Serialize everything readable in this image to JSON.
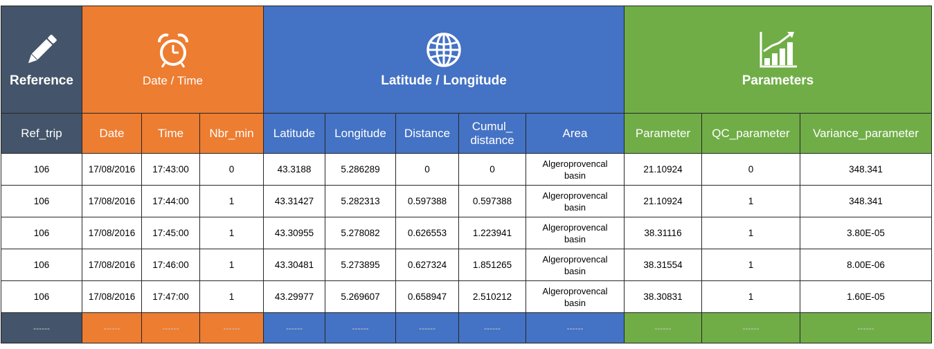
{
  "groups": [
    {
      "id": "reference",
      "title": "Reference",
      "icon": "pencil-icon",
      "color": "#44546a"
    },
    {
      "id": "datetime",
      "title": "Date / Time",
      "icon": "alarm-clock-icon",
      "color": "#ed7d31"
    },
    {
      "id": "latlon",
      "title": "Latitude / Longitude",
      "icon": "globe-icon",
      "color": "#4472c4"
    },
    {
      "id": "parameters",
      "title": "Parameters",
      "icon": "bar-chart-growth-icon",
      "color": "#70ad47"
    }
  ],
  "columns": [
    "Ref_trip",
    "Date",
    "Time",
    "Nbr_min",
    "Latitude",
    "Longitude",
    "Distance",
    "Cumul_\ndistance",
    "Area",
    "Parameter",
    "QC_parameter",
    "Variance_parameter"
  ],
  "rows": [
    [
      "106",
      "17/08/2016",
      "17:43:00",
      "0",
      "43.3188",
      "5.286289",
      "0",
      "0",
      "Algeroprovencal basin",
      "21.10924",
      "0",
      "348.341"
    ],
    [
      "106",
      "17/08/2016",
      "17:44:00",
      "1",
      "43.31427",
      "5.282313",
      "0.597388",
      "0.597388",
      "Algeroprovencal basin",
      "21.10924",
      "1",
      "348.341"
    ],
    [
      "106",
      "17/08/2016",
      "17:45:00",
      "1",
      "43.30955",
      "5.278082",
      "0.626553",
      "1.223941",
      "Algeroprovencal basin",
      "38.31116",
      "1",
      "3.80E-05"
    ],
    [
      "106",
      "17/08/2016",
      "17:46:00",
      "1",
      "43.30481",
      "5.273895",
      "0.627324",
      "1.851265",
      "Algeroprovencal basin",
      "38.31554",
      "1",
      "8.00E-06"
    ],
    [
      "106",
      "17/08/2016",
      "17:47:00",
      "1",
      "43.29977",
      "5.269607",
      "0.658947",
      "2.510212",
      "Algeroprovencal basin",
      "38.30831",
      "1",
      "1.60E-05"
    ]
  ],
  "footer": [
    "------",
    "------",
    "------",
    "------",
    "------",
    "------",
    "------",
    "------",
    "------",
    "------",
    "------",
    "------"
  ]
}
